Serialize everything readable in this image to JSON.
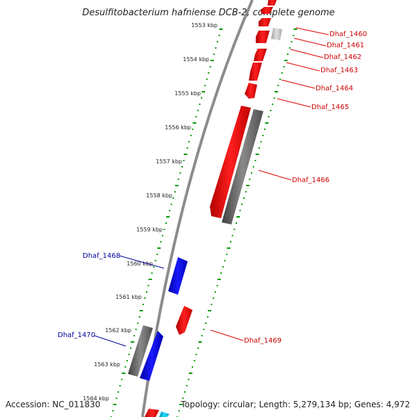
{
  "title": "Desulfitobacterium hafniense DCB-2, complete genome",
  "footer": {
    "accession": "Accession: NC_011830",
    "summary": "Topology: circular; Length: 5,279,134 bp; Genes: 4,972"
  },
  "colors": {
    "forward_gene": "#ff0000",
    "reverse_gene": "#0000ff",
    "other_feature": "#707070",
    "light_feature": "#c8c8c8",
    "cyan_feature": "#00c0e0",
    "tick_dots": "#009900",
    "backbone": "#888888",
    "forward_label": "#cc0000",
    "reverse_label": "#000099"
  },
  "ticks": [
    "1553 kbp",
    "1554 kbp",
    "1555 kbp",
    "1556 kbp",
    "1557 kbp",
    "1558 kbp",
    "1559 kbp",
    "1560 kbp",
    "1561 kbp",
    "1562 kbp",
    "1563 kbp",
    "1564 kbp"
  ],
  "gene_labels": [
    {
      "name": "Dhaf_1460",
      "strand": "forward"
    },
    {
      "name": "Dhaf_1461",
      "strand": "forward"
    },
    {
      "name": "Dhaf_1462",
      "strand": "forward"
    },
    {
      "name": "Dhaf_1463",
      "strand": "forward"
    },
    {
      "name": "Dhaf_1464",
      "strand": "forward"
    },
    {
      "name": "Dhaf_1465",
      "strand": "forward"
    },
    {
      "name": "Dhaf_1466",
      "strand": "forward"
    },
    {
      "name": "Dhaf_1468",
      "strand": "reverse"
    },
    {
      "name": "Dhaf_1469",
      "strand": "forward"
    },
    {
      "name": "Dhaf_1470",
      "strand": "reverse"
    }
  ]
}
